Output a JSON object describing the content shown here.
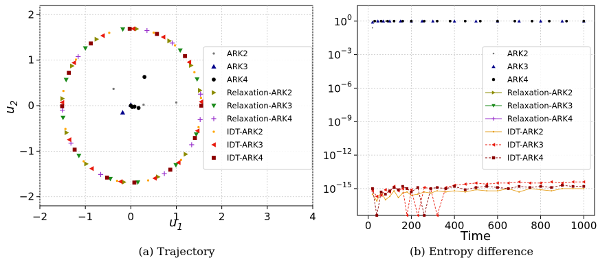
{
  "chart_data": [
    {
      "type": "scatter",
      "caption": "(a) Trajectory",
      "xlabel": "u1",
      "ylabel": "u2",
      "xlim": [
        -2,
        4
      ],
      "ylim": [
        -2.2,
        2.2
      ],
      "xticks": [
        -2,
        -1,
        0,
        1,
        2,
        3,
        4
      ],
      "yticks": [
        -2,
        -1,
        0,
        1,
        2
      ],
      "grid": true,
      "legend_position": "right",
      "orbit": {
        "cx": 0.02,
        "cy": 0.0,
        "rx": 1.53,
        "ry": 1.69
      },
      "series": [
        {
          "name": "ARK2",
          "marker": "dot",
          "color": "#777777",
          "angles": [],
          "points": [
            [
              -0.38,
              0.37
            ],
            [
              0.28,
              0.02
            ],
            [
              1.0,
              0.07
            ],
            [
              0.08,
              -0.05
            ],
            [
              0.0,
              0.0
            ]
          ]
        },
        {
          "name": "ARK3",
          "marker": "triangle-up",
          "color": "#00008b",
          "angles": [],
          "points": [
            [
              -0.18,
              -0.15
            ],
            [
              0.0,
              0.02
            ]
          ]
        },
        {
          "name": "ARK4",
          "marker": "circle",
          "color": "#000000",
          "angles": [],
          "points": [
            [
              0.3,
              0.63
            ],
            [
              0.17,
              -0.05
            ],
            [
              0.0,
              0.0
            ],
            [
              0.03,
              -0.03
            ],
            [
              0.08,
              -0.02
            ]
          ]
        },
        {
          "name": "Relaxation-ARK2",
          "marker": "triangle-right",
          "color": "#8b8b00",
          "angles": [
            0.2,
            0.55,
            1.0,
            1.5,
            2.1,
            2.6,
            3.05,
            3.5,
            4.0,
            4.6,
            5.1,
            5.6
          ],
          "points": []
        },
        {
          "name": "Relaxation-ARK3",
          "marker": "triangle-down",
          "color": "#1a8a1a",
          "angles": [
            0.35,
            0.8,
            1.7,
            2.3,
            2.8,
            3.3,
            3.85,
            4.4,
            4.8,
            5.4,
            5.9
          ],
          "points": []
        },
        {
          "name": "Relaxation-ARK4",
          "marker": "plus",
          "color": "#9932cc",
          "angles": [
            0.15,
            0.95,
            1.35,
            2.45,
            3.2,
            3.65,
            4.25,
            5.2,
            5.75,
            6.1
          ],
          "points": []
        },
        {
          "name": "IDT-ARK2",
          "marker": "dot",
          "color": "#ffa500",
          "angles": [
            0.1,
            0.45,
            0.9,
            1.25,
            1.9,
            2.5,
            2.95,
            3.45,
            3.95,
            4.5,
            4.95,
            5.5,
            6.0
          ],
          "points": []
        },
        {
          "name": "IDT-ARK3",
          "marker": "triangle-left",
          "color": "#e8190c",
          "angles": [
            0.05,
            0.6,
            1.1,
            1.55,
            2.0,
            2.55,
            3.1,
            3.6,
            4.1,
            4.55,
            5.05,
            5.45,
            5.95
          ],
          "points": []
        },
        {
          "name": "IDT-ARK4",
          "marker": "square",
          "color": "#8b0000",
          "angles": [
            0.0,
            0.7,
            1.2,
            1.6,
            2.2,
            2.7,
            3.15,
            3.75,
            4.35,
            4.75,
            5.3,
            5.85
          ],
          "points": []
        }
      ]
    },
    {
      "type": "line",
      "caption": "(b) Entropy difference",
      "xlabel": "Time",
      "ylabel": "",
      "yscale": "log",
      "xlim": [
        -50,
        1050
      ],
      "ylim_log10": [
        -17.4,
        1.4
      ],
      "xticks": [
        0,
        200,
        400,
        600,
        800,
        1000
      ],
      "yticks_exp": [
        0,
        -3,
        -6,
        -9,
        -12,
        -15
      ],
      "ytick_labels": [
        "10",
        "10",
        "10",
        "10",
        "10",
        "10"
      ],
      "ytick_exps": [
        "0",
        "−3",
        "−6",
        "−9",
        "−12",
        "−15"
      ],
      "grid": true,
      "legend_position": "right",
      "series": [
        {
          "name": "ARK2",
          "marker": "dot",
          "color": "#777777",
          "linestyle": "none",
          "x": [
            20,
            40,
            60,
            80,
            100,
            150,
            200,
            300,
            400,
            500,
            600,
            700,
            800,
            900,
            1000
          ],
          "log10y": [
            -0.6,
            0,
            0,
            0,
            0,
            0,
            0,
            0,
            0,
            0,
            0,
            0,
            0,
            0,
            0
          ]
        },
        {
          "name": "ARK3",
          "marker": "triangle-up",
          "color": "#00008b",
          "linestyle": "none",
          "x": [
            20,
            45,
            70,
            100,
            150,
            200,
            250,
            300,
            400,
            500,
            600,
            700,
            800,
            900,
            1000
          ],
          "log10y": [
            -0.1,
            0,
            0,
            0,
            0,
            0,
            0,
            0,
            0,
            0,
            0,
            0,
            0,
            0,
            0
          ]
        },
        {
          "name": "ARK4",
          "marker": "circle",
          "color": "#000000",
          "linestyle": "none",
          "x": [
            30,
            60,
            90,
            120,
            160,
            200,
            260,
            320,
            380,
            450,
            520,
            600,
            680,
            760,
            840,
            920,
            1000
          ],
          "log10y": [
            0,
            0,
            0,
            0,
            0,
            0,
            0,
            0,
            0,
            0,
            0,
            0,
            0,
            0,
            0,
            0,
            0
          ]
        },
        {
          "name": "Relaxation-ARK2",
          "marker": "triangle-right",
          "color": "#8b8b00",
          "linestyle": "solid",
          "x": [],
          "log10y": []
        },
        {
          "name": "Relaxation-ARK3",
          "marker": "triangle-down",
          "color": "#1a8a1a",
          "linestyle": "solid",
          "x": [],
          "log10y": []
        },
        {
          "name": "Relaxation-ARK4",
          "marker": "plus",
          "color": "#9932cc",
          "linestyle": "solid",
          "x": [],
          "log10y": []
        },
        {
          "name": "IDT-ARK2",
          "marker": "dot",
          "color": "#e6a020",
          "linestyle": "solid",
          "x": [
            20,
            40,
            60,
            80,
            100,
            120,
            140,
            160,
            180,
            200,
            230,
            260,
            290,
            320,
            360,
            400,
            450,
            500,
            550,
            600,
            650,
            700,
            750,
            800,
            850,
            900,
            950,
            1000
          ],
          "log10y": [
            -15.5,
            -16.1,
            -15.3,
            -16.0,
            -15.7,
            -15.2,
            -15.8,
            -15.4,
            -15.3,
            -15.6,
            -15.5,
            -15.3,
            -15.4,
            -15.2,
            -15.3,
            -15.2,
            -15.3,
            -15.1,
            -15.2,
            -15.2,
            -15.0,
            -15.3,
            -15.0,
            -15.1,
            -15.2,
            -15.0,
            -15.0,
            -15.0
          ]
        },
        {
          "name": "IDT-ARK3",
          "marker": "triangle-left",
          "color": "#e8190c",
          "linestyle": "dashed",
          "x": [
            20,
            40,
            60,
            80,
            100,
            120,
            140,
            160,
            180,
            200,
            230,
            260,
            290,
            320,
            360,
            400,
            450,
            500,
            550,
            600,
            650,
            700,
            750,
            800,
            850,
            900,
            950,
            1000
          ],
          "log10y": [
            -15.2,
            -15.7,
            -15.6,
            -15.1,
            -15.3,
            -14.8,
            -15.2,
            -15.0,
            -17.4,
            -15.1,
            -17.4,
            -14.9,
            -15.0,
            -17.4,
            -14.9,
            -14.7,
            -14.6,
            -14.5,
            -14.6,
            -14.5,
            -14.5,
            -14.4,
            -14.5,
            -14.5,
            -14.4,
            -14.5,
            -14.4,
            -14.4
          ]
        },
        {
          "name": "IDT-ARK4",
          "marker": "square",
          "color": "#8b0000",
          "linestyle": "dashed",
          "x": [
            20,
            40,
            60,
            80,
            100,
            120,
            140,
            160,
            180,
            200,
            230,
            260,
            290,
            320,
            360,
            400,
            450,
            500,
            550,
            600,
            650,
            700,
            750,
            800,
            850,
            900,
            950,
            1000
          ],
          "log10y": [
            -15.0,
            -17.4,
            -15.3,
            -15.5,
            -15.2,
            -14.9,
            -15.1,
            -14.8,
            -15.0,
            -15.3,
            -14.9,
            -17.4,
            -15.0,
            -14.9,
            -15.0,
            -14.8,
            -15.1,
            -14.9,
            -14.8,
            -14.9,
            -15.0,
            -14.8,
            -14.9,
            -14.8,
            -14.9,
            -14.7,
            -14.8,
            -14.8
          ]
        }
      ]
    }
  ]
}
